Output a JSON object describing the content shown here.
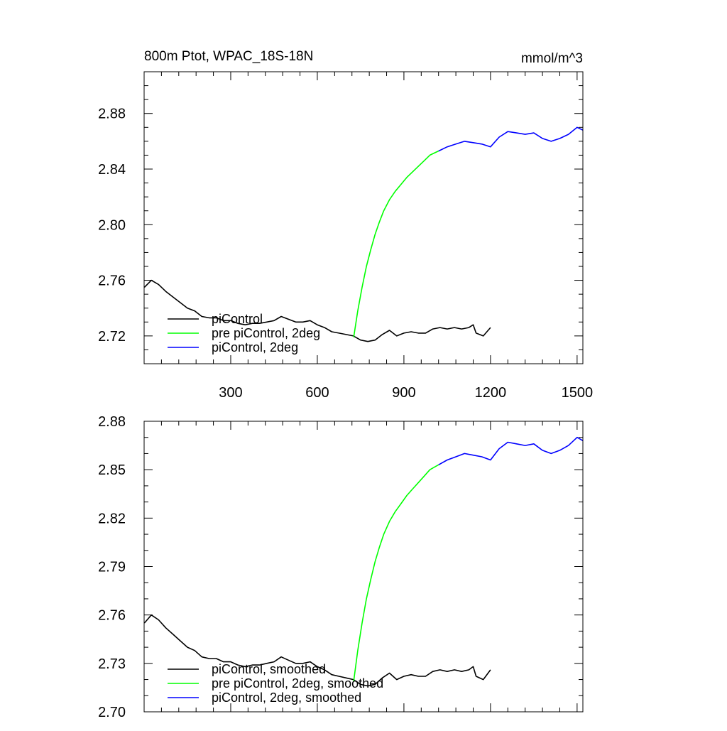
{
  "chart_data": [
    {
      "type": "line",
      "title": "800m Ptot, WPAC_18S-18N",
      "units": "mmol/m^3",
      "xlim": [
        0,
        1520
      ],
      "ylim": [
        2.7,
        2.91
      ],
      "xticks": [
        300,
        600,
        900,
        1200,
        1500
      ],
      "xtick_labels": [
        "300",
        "600",
        "900",
        "1200",
        "1500"
      ],
      "yticks": [
        2.72,
        2.76,
        2.8,
        2.84,
        2.88
      ],
      "ytick_labels": [
        "2.72",
        "2.76",
        "2.80",
        "2.84",
        "2.88"
      ],
      "legend_position": "bottom-left",
      "series": [
        {
          "name": "piControl",
          "color": "#000000",
          "points": [
            [
              1,
              2.755
            ],
            [
              25,
              2.76
            ],
            [
              50,
              2.757
            ],
            [
              75,
              2.752
            ],
            [
              100,
              2.748
            ],
            [
              125,
              2.744
            ],
            [
              150,
              2.74
            ],
            [
              175,
              2.738
            ],
            [
              200,
              2.734
            ],
            [
              225,
              2.733
            ],
            [
              250,
              2.733
            ],
            [
              275,
              2.731
            ],
            [
              300,
              2.731
            ],
            [
              325,
              2.729
            ],
            [
              350,
              2.728
            ],
            [
              375,
              2.729
            ],
            [
              400,
              2.729
            ],
            [
              425,
              2.73
            ],
            [
              450,
              2.731
            ],
            [
              475,
              2.734
            ],
            [
              500,
              2.732
            ],
            [
              525,
              2.73
            ],
            [
              550,
              2.73
            ],
            [
              575,
              2.731
            ],
            [
              600,
              2.728
            ],
            [
              625,
              2.726
            ],
            [
              650,
              2.723
            ],
            [
              675,
              2.722
            ],
            [
              700,
              2.721
            ],
            [
              725,
              2.72
            ],
            [
              750,
              2.717
            ],
            [
              775,
              2.716
            ],
            [
              800,
              2.717
            ],
            [
              825,
              2.721
            ],
            [
              850,
              2.724
            ],
            [
              875,
              2.72
            ],
            [
              900,
              2.722
            ],
            [
              925,
              2.723
            ],
            [
              950,
              2.722
            ],
            [
              975,
              2.722
            ],
            [
              1000,
              2.725
            ],
            [
              1025,
              2.726
            ],
            [
              1050,
              2.725
            ],
            [
              1075,
              2.726
            ],
            [
              1100,
              2.725
            ],
            [
              1125,
              2.726
            ],
            [
              1140,
              2.728
            ],
            [
              1150,
              2.722
            ],
            [
              1175,
              2.72
            ],
            [
              1200,
              2.726
            ]
          ]
        },
        {
          "name": "pre piControl, 2deg",
          "color": "#00ff00",
          "points": [
            [
              726,
              2.719
            ],
            [
              740,
              2.738
            ],
            [
              755,
              2.755
            ],
            [
              770,
              2.77
            ],
            [
              785,
              2.782
            ],
            [
              800,
              2.793
            ],
            [
              815,
              2.802
            ],
            [
              830,
              2.81
            ],
            [
              850,
              2.818
            ],
            [
              870,
              2.824
            ],
            [
              890,
              2.829
            ],
            [
              910,
              2.834
            ],
            [
              930,
              2.838
            ],
            [
              950,
              2.842
            ],
            [
              970,
              2.846
            ],
            [
              990,
              2.85
            ],
            [
              1010,
              2.852
            ],
            [
              1020,
              2.853
            ]
          ]
        },
        {
          "name": "piControl, 2deg",
          "color": "#0000ff",
          "points": [
            [
              1020,
              2.853
            ],
            [
              1050,
              2.856
            ],
            [
              1080,
              2.858
            ],
            [
              1110,
              2.86
            ],
            [
              1140,
              2.859
            ],
            [
              1170,
              2.858
            ],
            [
              1200,
              2.856
            ],
            [
              1230,
              2.863
            ],
            [
              1260,
              2.867
            ],
            [
              1290,
              2.866
            ],
            [
              1320,
              2.865
            ],
            [
              1350,
              2.866
            ],
            [
              1380,
              2.862
            ],
            [
              1410,
              2.86
            ],
            [
              1440,
              2.862
            ],
            [
              1470,
              2.865
            ],
            [
              1500,
              2.87
            ],
            [
              1520,
              2.868
            ]
          ]
        }
      ]
    },
    {
      "type": "line",
      "xlim": [
        0,
        1520
      ],
      "ylim": [
        2.7,
        2.88
      ],
      "xticks": [
        300,
        600,
        900,
        1200,
        1500
      ],
      "yticks": [
        2.7,
        2.73,
        2.76,
        2.79,
        2.82,
        2.85,
        2.88
      ],
      "ytick_labels": [
        "2.70",
        "2.73",
        "2.76",
        "2.79",
        "2.82",
        "2.85",
        "2.88"
      ],
      "legend_position": "bottom-left",
      "series": [
        {
          "name": "piControl, smoothed",
          "color": "#000000",
          "points": [
            [
              1,
              2.755
            ],
            [
              25,
              2.76
            ],
            [
              50,
              2.757
            ],
            [
              75,
              2.752
            ],
            [
              100,
              2.748
            ],
            [
              125,
              2.744
            ],
            [
              150,
              2.74
            ],
            [
              175,
              2.738
            ],
            [
              200,
              2.734
            ],
            [
              225,
              2.733
            ],
            [
              250,
              2.733
            ],
            [
              275,
              2.731
            ],
            [
              300,
              2.731
            ],
            [
              325,
              2.729
            ],
            [
              350,
              2.728
            ],
            [
              375,
              2.729
            ],
            [
              400,
              2.729
            ],
            [
              425,
              2.73
            ],
            [
              450,
              2.731
            ],
            [
              475,
              2.734
            ],
            [
              500,
              2.732
            ],
            [
              525,
              2.73
            ],
            [
              550,
              2.73
            ],
            [
              575,
              2.731
            ],
            [
              600,
              2.728
            ],
            [
              625,
              2.726
            ],
            [
              650,
              2.723
            ],
            [
              675,
              2.722
            ],
            [
              700,
              2.721
            ],
            [
              725,
              2.72
            ],
            [
              750,
              2.717
            ],
            [
              775,
              2.716
            ],
            [
              800,
              2.717
            ],
            [
              825,
              2.721
            ],
            [
              850,
              2.724
            ],
            [
              875,
              2.72
            ],
            [
              900,
              2.722
            ],
            [
              925,
              2.723
            ],
            [
              950,
              2.722
            ],
            [
              975,
              2.722
            ],
            [
              1000,
              2.725
            ],
            [
              1025,
              2.726
            ],
            [
              1050,
              2.725
            ],
            [
              1075,
              2.726
            ],
            [
              1100,
              2.725
            ],
            [
              1125,
              2.726
            ],
            [
              1140,
              2.728
            ],
            [
              1150,
              2.722
            ],
            [
              1175,
              2.72
            ],
            [
              1200,
              2.726
            ]
          ]
        },
        {
          "name": "pre piControl, 2deg, smoothed",
          "color": "#00ff00",
          "points": [
            [
              726,
              2.719
            ],
            [
              740,
              2.738
            ],
            [
              755,
              2.755
            ],
            [
              770,
              2.77
            ],
            [
              785,
              2.782
            ],
            [
              800,
              2.793
            ],
            [
              815,
              2.802
            ],
            [
              830,
              2.81
            ],
            [
              850,
              2.818
            ],
            [
              870,
              2.824
            ],
            [
              890,
              2.829
            ],
            [
              910,
              2.834
            ],
            [
              930,
              2.838
            ],
            [
              950,
              2.842
            ],
            [
              970,
              2.846
            ],
            [
              990,
              2.85
            ],
            [
              1010,
              2.852
            ],
            [
              1020,
              2.853
            ]
          ]
        },
        {
          "name": "piControl, 2deg, smoothed",
          "color": "#0000ff",
          "points": [
            [
              1020,
              2.853
            ],
            [
              1050,
              2.856
            ],
            [
              1080,
              2.858
            ],
            [
              1110,
              2.86
            ],
            [
              1140,
              2.859
            ],
            [
              1170,
              2.858
            ],
            [
              1200,
              2.856
            ],
            [
              1230,
              2.863
            ],
            [
              1260,
              2.867
            ],
            [
              1290,
              2.866
            ],
            [
              1320,
              2.865
            ],
            [
              1350,
              2.866
            ],
            [
              1380,
              2.862
            ],
            [
              1410,
              2.86
            ],
            [
              1440,
              2.862
            ],
            [
              1470,
              2.865
            ],
            [
              1500,
              2.87
            ],
            [
              1520,
              2.868
            ]
          ]
        }
      ]
    }
  ]
}
